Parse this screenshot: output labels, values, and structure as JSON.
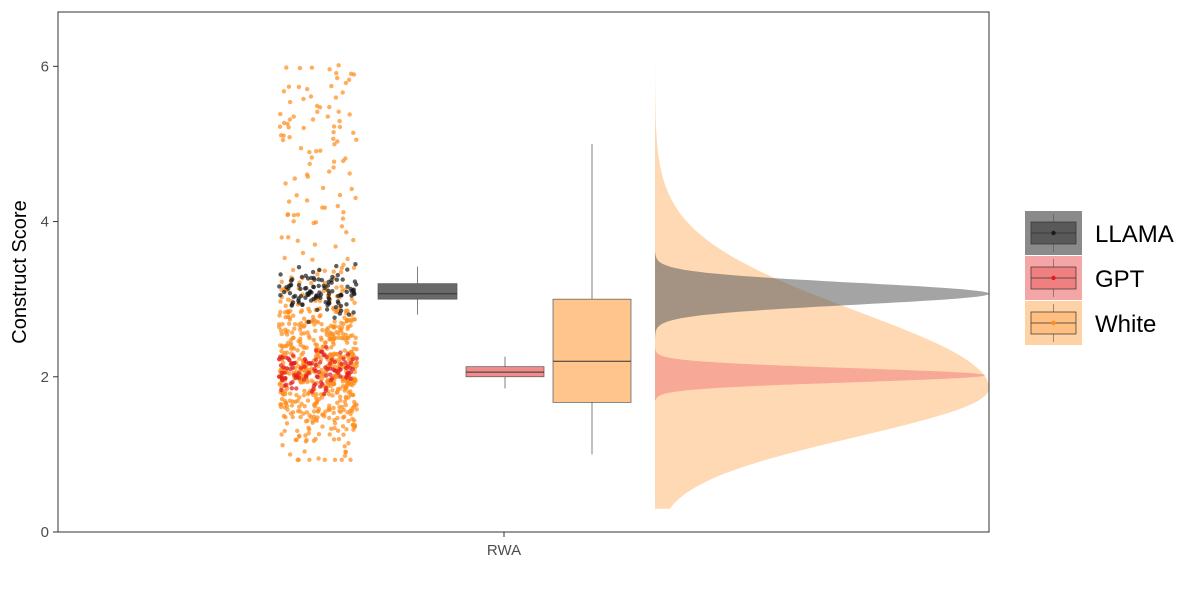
{
  "chart_data": {
    "type": "raincloud",
    "title": "",
    "xlabel": "",
    "ylabel": "Construct Score",
    "x_categories": [
      "RWA"
    ],
    "ylim": [
      0,
      6.7
    ],
    "y_ticks": [
      0,
      2,
      4,
      6
    ],
    "grid": false,
    "legend_position": "right",
    "series": [
      {
        "name": "LLAMA",
        "color": "#1a1a1a",
        "fill": "#595959",
        "boxplot": {
          "min": 2.8,
          "q1": 3.0,
          "median": 3.07,
          "q3": 3.2,
          "max": 3.42
        },
        "points_summary": {
          "n": 110,
          "center": 3.1,
          "spread": 0.15,
          "min": 2.5,
          "max": 3.45
        },
        "density": {
          "mode": 3.07,
          "sd": 0.14,
          "range": [
            2.5,
            3.6
          ]
        }
      },
      {
        "name": "GPT",
        "color": "#e31a1c",
        "fill": "#f08080",
        "boxplot": {
          "min": 1.85,
          "q1": 2.0,
          "median": 2.06,
          "q3": 2.13,
          "max": 2.26
        },
        "points_summary": {
          "n": 110,
          "center": 2.05,
          "spread": 0.15,
          "min": 1.7,
          "max": 2.4
        },
        "density": {
          "mode": 2.02,
          "sd": 0.09,
          "range": [
            1.7,
            2.4
          ]
        }
      },
      {
        "name": "White",
        "color": "#ff8c1a",
        "fill": "#ffbf80",
        "boxplot": {
          "min": 1.0,
          "q1": 1.67,
          "median": 2.2,
          "q3": 3.0,
          "max": 5.0
        },
        "points_summary": {
          "n": 700,
          "center": 2.1,
          "spread": 0.85,
          "min": 0.93,
          "max": 6.02
        },
        "density": {
          "mode": 1.85,
          "sd": 0.62,
          "range": [
            0.3,
            6.7
          ]
        }
      }
    ]
  },
  "legend": {
    "items": [
      "LLAMA",
      "GPT",
      "White"
    ]
  }
}
